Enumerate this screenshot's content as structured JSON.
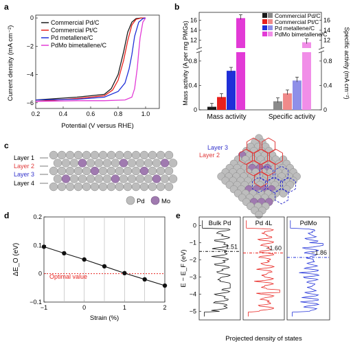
{
  "panels": {
    "a": "a",
    "b": "b",
    "c": "c",
    "d": "d",
    "e": "e"
  },
  "colors": {
    "black": "#1a1a1a",
    "red": "#e8201c",
    "blue": "#1f2fd8",
    "magenta": "#e23ad6",
    "grey_b": "#8a8a8a",
    "pink_b": "#f08a8a",
    "lblue_b": "#8f8fe8",
    "lmag_b": "#f18ee8",
    "layer_red": "#e03a3a",
    "layer_blue": "#3333cc",
    "dashed_red": "#ff2222"
  },
  "chart_data": [
    {
      "panel": "a",
      "type": "line",
      "xlabel": "Potential (V versus RHE)",
      "ylabel": "Current density (mA cm⁻²)",
      "xlim": [
        0.2,
        1.1
      ],
      "ylim": [
        -6.4,
        0.2
      ],
      "xticks": [
        "0.2",
        "0.4",
        "0.6",
        "0.8",
        "1.0"
      ],
      "yticks": [
        "0",
        "−2",
        "−4",
        "−6"
      ],
      "series": [
        {
          "name": "Commercial Pd/C",
          "color": "#1a1a1a",
          "x": [
            0.2,
            0.5,
            0.7,
            0.75,
            0.8,
            0.84,
            0.87,
            0.9,
            0.93,
            0.97,
            1.0
          ],
          "y": [
            -5.8,
            -5.6,
            -5.4,
            -5.0,
            -4.0,
            -2.4,
            -1.0,
            -0.3,
            -0.05,
            0,
            0
          ]
        },
        {
          "name": "Commercial Pt/C",
          "color": "#e8201c",
          "x": [
            0.2,
            0.5,
            0.7,
            0.76,
            0.8,
            0.84,
            0.87,
            0.9,
            0.93,
            0.97,
            1.0
          ],
          "y": [
            -5.9,
            -5.7,
            -5.5,
            -5.1,
            -4.4,
            -3.0,
            -1.6,
            -0.5,
            -0.1,
            0,
            0
          ]
        },
        {
          "name": "Pd metallene/C",
          "color": "#1f2fd8",
          "x": [
            0.2,
            0.5,
            0.7,
            0.8,
            0.85,
            0.88,
            0.9,
            0.92,
            0.95,
            0.98,
            1.0
          ],
          "y": [
            -5.8,
            -5.75,
            -5.6,
            -5.2,
            -4.6,
            -3.6,
            -2.6,
            -1.3,
            -0.3,
            -0.05,
            0
          ]
        },
        {
          "name": "PdMo bimetallene/C",
          "color": "#e23ad6",
          "x": [
            0.2,
            0.5,
            0.7,
            0.85,
            0.9,
            0.92,
            0.94,
            0.95,
            0.96,
            0.98,
            1.0
          ],
          "y": [
            -5.9,
            -5.85,
            -5.85,
            -5.8,
            -5.6,
            -5.0,
            -3.5,
            -2.4,
            -1.4,
            -0.3,
            0
          ]
        }
      ]
    },
    {
      "panel": "b",
      "type": "bar",
      "categories": [
        "Mass activity",
        "Specific activity"
      ],
      "ylabel_left": "Mass activity (A per mg PMGs)",
      "ylabel_right": "Specific activity (mA cm⁻²)",
      "yticks_lower": [
        "0",
        "0.4",
        "0.8"
      ],
      "yticks_upper": [
        "12",
        "14",
        "16"
      ],
      "legend": [
        "Commercial Pd/C",
        "Commercial Pt/C",
        "Pd metallene/C",
        "PdMo bimetallene/C"
      ],
      "series": [
        {
          "name": "Commercial Pd/C",
          "values": [
            0.05,
            0.14
          ]
        },
        {
          "name": "Commercial Pt/C",
          "values": [
            0.21,
            0.27
          ]
        },
        {
          "name": "Pd metallene/C",
          "values": [
            0.64,
            0.48
          ]
        },
        {
          "name": "PdMo bimetallene/C",
          "values": [
            16.4,
            11.6
          ]
        }
      ]
    },
    {
      "panel": "d",
      "type": "line",
      "xlabel": "Strain (%)",
      "ylabel": "ΔE_O (eV)",
      "xlim": [
        -1,
        2
      ],
      "ylim": [
        -0.1,
        0.2
      ],
      "xticks": [
        "−1",
        "0",
        "1",
        "2"
      ],
      "yticks": [
        "−0.1",
        "0",
        "0.1",
        "0.2"
      ],
      "x": [
        -1,
        -0.5,
        0,
        0.5,
        1,
        1.5,
        2
      ],
      "y": [
        0.095,
        0.072,
        0.05,
        0.026,
        0.002,
        -0.02,
        -0.042
      ],
      "optimal_label": "Optimal value",
      "optimal_value": 0
    },
    {
      "panel": "e",
      "type": "line",
      "xlabel": "Projected density of states",
      "ylabel": "E − E_F (eV)",
      "yticks": [
        "0",
        "−1",
        "−2",
        "−3",
        "−4",
        "−5"
      ],
      "titles": [
        "Bulk Pd",
        "Pd 4L",
        "PdMo"
      ],
      "centers": [
        "−1.51",
        "−1.60",
        "−1.86"
      ],
      "center_values": [
        -1.51,
        -1.6,
        -1.86
      ]
    }
  ],
  "legend_a": [
    "Commercial Pd/C",
    "Commercial Pt/C",
    "Pd metallene/C",
    "PdMo bimetallene/C"
  ],
  "panel_c": {
    "layers": [
      "Layer 1",
      "Layer 2",
      "Layer 3",
      "Layer 4"
    ],
    "legend": {
      "pd": "Pd",
      "mo": "Mo"
    },
    "top_labels": [
      "Layer 3",
      "Layer 2"
    ]
  }
}
